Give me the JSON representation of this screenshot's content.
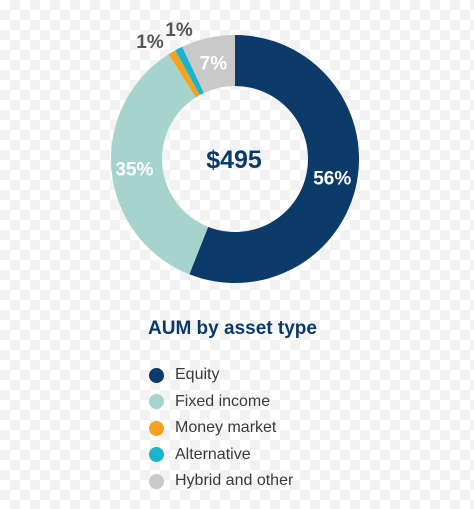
{
  "chart_data": {
    "type": "pie",
    "title": "AUM by asset type",
    "center_value": "$495",
    "slices": [
      {
        "name": "Equity",
        "value": 56,
        "label": "56%",
        "color": "#0c3a69"
      },
      {
        "name": "Fixed income",
        "value": 35,
        "label": "35%",
        "color": "#a6d3ce"
      },
      {
        "name": "Money market",
        "value": 1,
        "label": "1%",
        "color": "#f6a21d"
      },
      {
        "name": "Alternative",
        "value": 1,
        "label": "1%",
        "color": "#18b5d1"
      },
      {
        "name": "Hybrid and other",
        "value": 7,
        "label": "7%",
        "color": "#c9c9c9"
      }
    ],
    "legend_position": "bottom"
  }
}
